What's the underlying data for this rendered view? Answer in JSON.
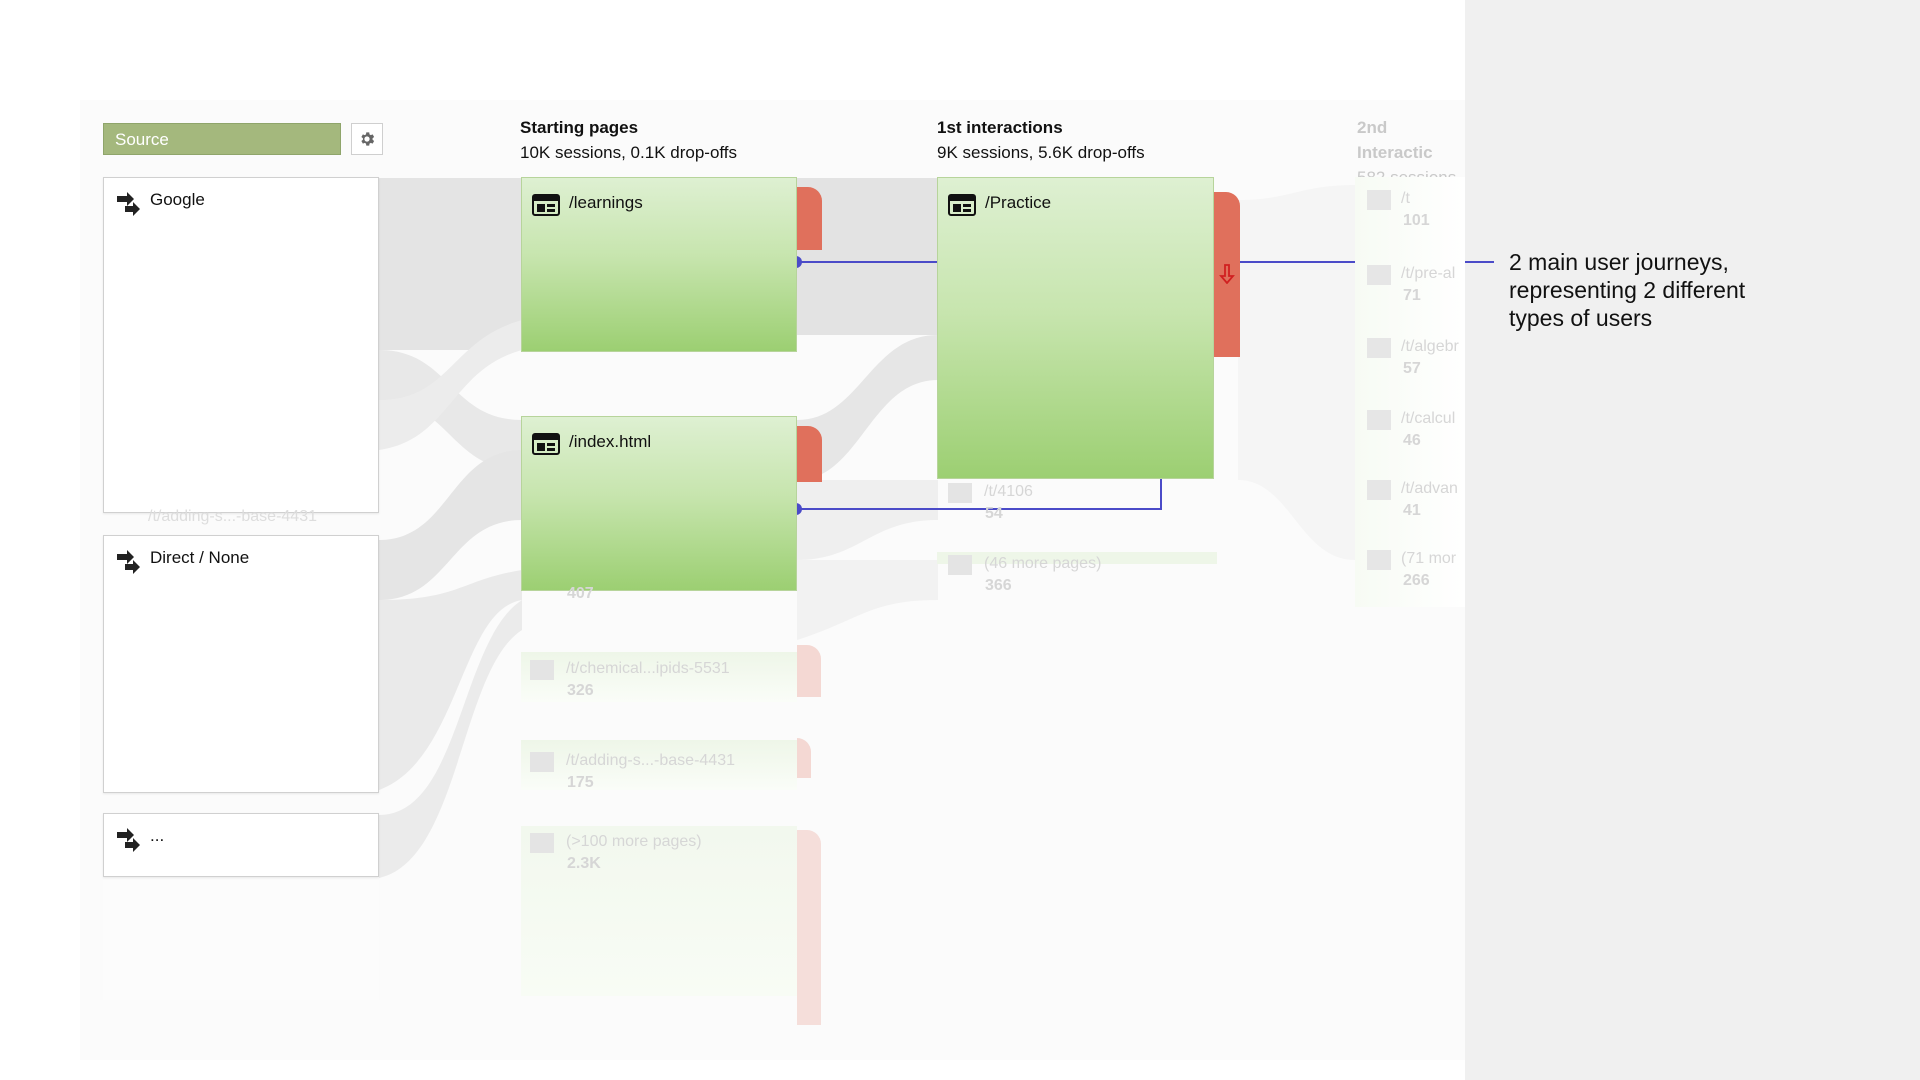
{
  "source_selector": {
    "label": "Source"
  },
  "columns": [
    {
      "title": "Starting pages",
      "subtitle": "10K sessions, 0.1K drop-offs"
    },
    {
      "title": "1st interactions",
      "subtitle": "9K sessions, 5.6K drop-offs"
    },
    {
      "title": "2nd Interactic",
      "subtitle": "582 sessions"
    }
  ],
  "sources": [
    {
      "label": "Google"
    },
    {
      "label": "Direct / None"
    },
    {
      "label": "..."
    }
  ],
  "source_ghost_row": {
    "label": "/t/adding-s...-base-4431"
  },
  "starting_pages": [
    {
      "label": "/learnings"
    },
    {
      "label": "/index.html"
    }
  ],
  "starting_pages_faded": [
    {
      "label": "/t/chemical...ipids-5531",
      "count": "326"
    },
    {
      "label": "/t/adding-s...-base-4431",
      "count": "175"
    },
    {
      "label": "(>100 more pages)",
      "count": "2.3K"
    }
  ],
  "index_ghost_count": "407",
  "first_interactions": [
    {
      "label": "/Practice"
    }
  ],
  "first_interactions_faded": [
    {
      "label": "/t/4106",
      "count": "54"
    },
    {
      "label": "(46 more pages)",
      "count": "366"
    }
  ],
  "second_interactions_faded": [
    {
      "label": "/t",
      "count": "101"
    },
    {
      "label": "/t/pre-al",
      "count": "71"
    },
    {
      "label": "/t/algebr",
      "count": "57"
    },
    {
      "label": "/t/calcul",
      "count": "46"
    },
    {
      "label": "/t/advan",
      "count": "41"
    },
    {
      "label": "(71 mor",
      "count": "266"
    }
  ],
  "annotation": {
    "line1": "2 main user journeys,",
    "line2": "representing 2 different",
    "line3": "types of users"
  },
  "colors": {
    "source_bar": "#a4b87d",
    "node_green": "#9ccf72",
    "dropoff_red": "#e0705c",
    "journey_line": "#4b4bc8"
  },
  "icons": {
    "source": "source-arrows-icon",
    "page": "page-window-icon",
    "settings": "gear-icon"
  }
}
